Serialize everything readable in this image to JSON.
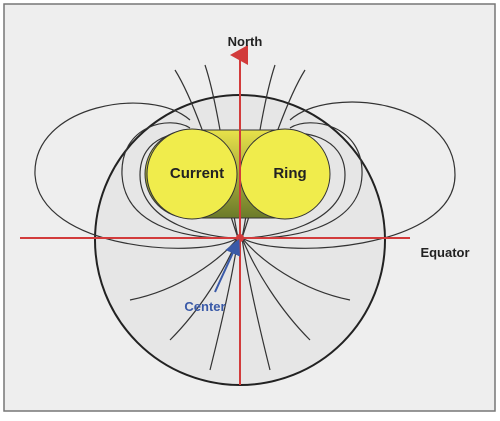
{
  "labels": {
    "north": "North",
    "current": "Current",
    "ring": "Ring",
    "equator": "Equator",
    "center": "Center"
  }
}
